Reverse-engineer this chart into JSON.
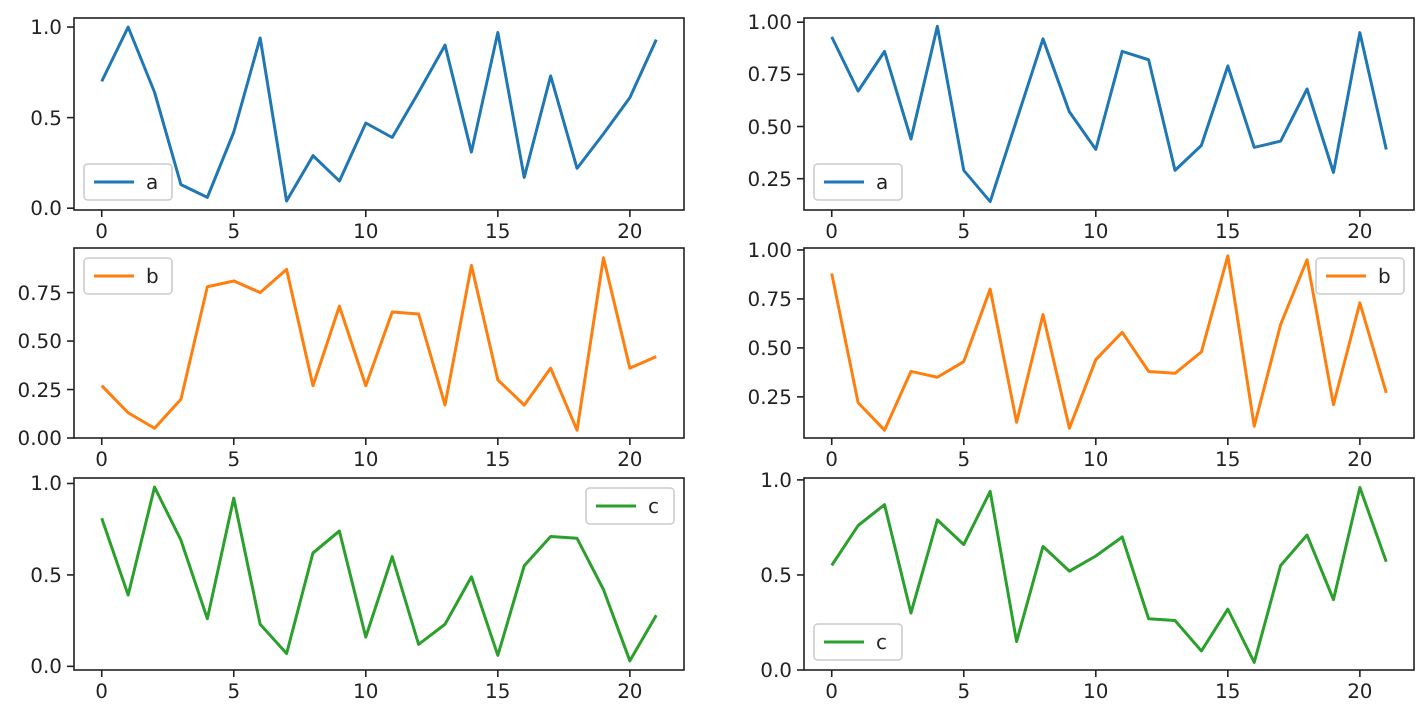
{
  "chart_data": [
    {
      "type": "line",
      "x": [
        0,
        1,
        2,
        3,
        4,
        5,
        6,
        7,
        8,
        9,
        10,
        11,
        12,
        13,
        14,
        15,
        16,
        17,
        18,
        19,
        20,
        21
      ],
      "xlim": [
        -1.05,
        22.05
      ],
      "xticks": [
        0,
        5,
        10,
        15,
        20
      ],
      "ylim": [
        -0.01,
        1.05
      ],
      "yticks": [
        {
          "value": 0,
          "label": "0.0"
        },
        0.5,
        {
          "value": 1,
          "label": "1.0"
        }
      ],
      "legend": "bottom left",
      "series": [
        {
          "name": "a",
          "color": "#1f77b4",
          "values": [
            0.7,
            1.0,
            0.64,
            0.13,
            0.06,
            0.42,
            0.94,
            0.04,
            0.29,
            0.15,
            0.47,
            0.39,
            0.64,
            0.9,
            0.31,
            0.97,
            0.17,
            0.73,
            0.22,
            0.41,
            0.61,
            0.93
          ]
        }
      ]
    },
    {
      "type": "line",
      "x": [
        0,
        1,
        2,
        3,
        4,
        5,
        6,
        7,
        8,
        9,
        10,
        11,
        12,
        13,
        14,
        15,
        16,
        17,
        18,
        19,
        20,
        21
      ],
      "xlim": [
        -1.05,
        22.05
      ],
      "xticks": [
        0,
        5,
        10,
        15,
        20
      ],
      "ylim": [
        0.1,
        1.02
      ],
      "yticks": [
        0.25,
        {
          "value": 0.5,
          "label": "0.50"
        },
        0.75,
        {
          "value": 1,
          "label": "1.00"
        }
      ],
      "legend": "bottom left",
      "series": [
        {
          "name": "a",
          "color": "#1f77b4",
          "values": [
            0.93,
            0.67,
            0.86,
            0.44,
            0.98,
            0.29,
            0.14,
            0.53,
            0.92,
            0.57,
            0.39,
            0.86,
            0.82,
            0.29,
            0.41,
            0.79,
            0.4,
            0.43,
            0.68,
            0.28,
            0.95,
            0.39
          ]
        }
      ]
    },
    {
      "type": "line",
      "x": [
        0,
        1,
        2,
        3,
        4,
        5,
        6,
        7,
        8,
        9,
        10,
        11,
        12,
        13,
        14,
        15,
        16,
        17,
        18,
        19,
        20,
        21
      ],
      "xlim": [
        -1.05,
        22.05
      ],
      "xticks": [
        0,
        5,
        10,
        15,
        20
      ],
      "ylim": [
        0.0,
        0.98
      ],
      "yticks": [
        {
          "value": 0,
          "label": "0.00"
        },
        0.25,
        {
          "value": 0.5,
          "label": "0.50"
        },
        0.75
      ],
      "legend": "top left",
      "series": [
        {
          "name": "b",
          "color": "#ff7f0e",
          "values": [
            0.27,
            0.13,
            0.05,
            0.2,
            0.78,
            0.81,
            0.75,
            0.87,
            0.27,
            0.68,
            0.27,
            0.65,
            0.64,
            0.17,
            0.89,
            0.3,
            0.17,
            0.36,
            0.04,
            0.93,
            0.36,
            0.42
          ]
        }
      ]
    },
    {
      "type": "line",
      "x": [
        0,
        1,
        2,
        3,
        4,
        5,
        6,
        7,
        8,
        9,
        10,
        11,
        12,
        13,
        14,
        15,
        16,
        17,
        18,
        19,
        20,
        21
      ],
      "xlim": [
        -1.05,
        22.05
      ],
      "xticks": [
        0,
        5,
        10,
        15,
        20
      ],
      "ylim": [
        0.04,
        1.01
      ],
      "yticks": [
        0.25,
        {
          "value": 0.5,
          "label": "0.50"
        },
        0.75,
        {
          "value": 1,
          "label": "1.00"
        }
      ],
      "legend": "top right",
      "series": [
        {
          "name": "b",
          "color": "#ff7f0e",
          "values": [
            0.88,
            0.22,
            0.08,
            0.38,
            0.35,
            0.43,
            0.8,
            0.12,
            0.67,
            0.09,
            0.44,
            0.58,
            0.38,
            0.37,
            0.48,
            0.97,
            0.1,
            0.62,
            0.95,
            0.21,
            0.73,
            0.27
          ]
        }
      ]
    },
    {
      "type": "line",
      "x": [
        0,
        1,
        2,
        3,
        4,
        5,
        6,
        7,
        8,
        9,
        10,
        11,
        12,
        13,
        14,
        15,
        16,
        17,
        18,
        19,
        20,
        21
      ],
      "xlim": [
        -1.05,
        22.05
      ],
      "xticks": [
        0,
        5,
        10,
        15,
        20
      ],
      "ylim": [
        -0.02,
        1.03
      ],
      "yticks": [
        {
          "value": 0,
          "label": "0.0"
        },
        0.5,
        {
          "value": 1,
          "label": "1.0"
        }
      ],
      "legend": "top right",
      "series": [
        {
          "name": "c",
          "color": "#2ca02c",
          "values": [
            0.81,
            0.39,
            0.98,
            0.69,
            0.26,
            0.92,
            0.23,
            0.07,
            0.62,
            0.74,
            0.16,
            0.6,
            0.12,
            0.23,
            0.49,
            0.06,
            0.55,
            0.71,
            0.7,
            0.42,
            0.03,
            0.28
          ]
        }
      ]
    },
    {
      "type": "line",
      "x": [
        0,
        1,
        2,
        3,
        4,
        5,
        6,
        7,
        8,
        9,
        10,
        11,
        12,
        13,
        14,
        15,
        16,
        17,
        18,
        19,
        20,
        21
      ],
      "xlim": [
        -1.05,
        22.05
      ],
      "xticks": [
        0,
        5,
        10,
        15,
        20
      ],
      "ylim": [
        0.0,
        1.01
      ],
      "yticks": [
        {
          "value": 0,
          "label": "0.0"
        },
        0.5,
        {
          "value": 1,
          "label": "1.0"
        }
      ],
      "legend": "bottom left",
      "series": [
        {
          "name": "c",
          "color": "#2ca02c",
          "values": [
            0.55,
            0.76,
            0.87,
            0.3,
            0.79,
            0.66,
            0.94,
            0.15,
            0.65,
            0.52,
            0.6,
            0.7,
            0.27,
            0.26,
            0.1,
            0.32,
            0.04,
            0.55,
            0.71,
            0.37,
            0.96,
            0.57
          ]
        }
      ]
    }
  ]
}
